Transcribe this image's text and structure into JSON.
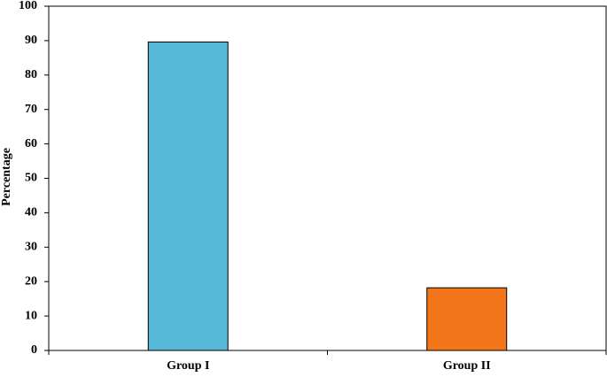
{
  "chart_data": {
    "type": "bar",
    "y_label": "Percentage",
    "categories": [
      "Group I",
      "Group II"
    ],
    "values": [
      89.6,
      18.2
    ],
    "colors": [
      "#56b9d8",
      "#f3771a"
    ],
    "ylim": [
      0,
      100
    ],
    "yticks": [
      0,
      10,
      20,
      30,
      40,
      50,
      60,
      70,
      80,
      90,
      100
    ]
  }
}
